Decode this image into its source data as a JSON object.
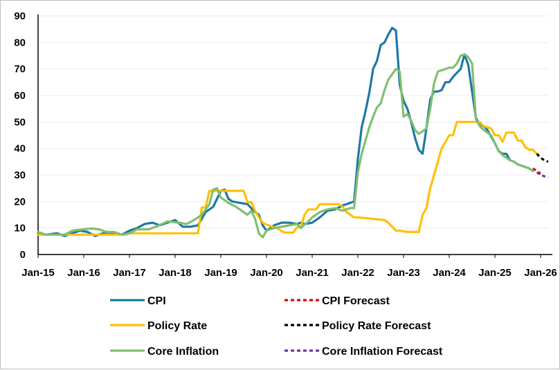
{
  "chart_data": {
    "type": "line",
    "title": "",
    "xlabel": "",
    "ylabel": "",
    "ylim": [
      0,
      90
    ],
    "yticks": [
      "0",
      "10",
      "20",
      "30",
      "40",
      "50",
      "60",
      "70",
      "80",
      "90"
    ],
    "xlim": [
      "2015-01",
      "2026-03"
    ],
    "xticks": [
      "Jan-15",
      "Jan-16",
      "Jan-17",
      "Jan-18",
      "Jan-19",
      "Jan-20",
      "Jan-21",
      "Jan-22",
      "Jan-23",
      "Jan-24",
      "Jan-25",
      "Jan-26"
    ],
    "grid": true,
    "legend_position": "bottom",
    "series": [
      {
        "name": "CPI",
        "color": "#1f77a4",
        "dash": "solid",
        "points": [
          [
            "2015-01",
            8
          ],
          [
            "2015-03",
            7.5
          ],
          [
            "2015-06",
            8
          ],
          [
            "2015-08",
            7
          ],
          [
            "2015-10",
            8
          ],
          [
            "2015-12",
            9
          ],
          [
            "2016-02",
            8.5
          ],
          [
            "2016-04",
            7
          ],
          [
            "2016-06",
            8
          ],
          [
            "2016-09",
            8
          ],
          [
            "2016-11",
            7.5
          ],
          [
            "2017-01",
            9
          ],
          [
            "2017-03",
            10
          ],
          [
            "2017-05",
            11.5
          ],
          [
            "2017-07",
            12
          ],
          [
            "2017-09",
            11
          ],
          [
            "2017-11",
            12
          ],
          [
            "2018-01",
            13
          ],
          [
            "2018-03",
            10.5
          ],
          [
            "2018-05",
            10.5
          ],
          [
            "2018-07",
            11
          ],
          [
            "2018-09",
            16
          ],
          [
            "2018-11",
            18
          ],
          [
            "2018-12",
            21
          ],
          [
            "2019-01",
            24
          ],
          [
            "2019-02",
            24.5
          ],
          [
            "2019-03",
            21
          ],
          [
            "2019-04",
            20
          ],
          [
            "2019-06",
            19.5
          ],
          [
            "2019-08",
            19
          ],
          [
            "2019-10",
            16
          ],
          [
            "2019-11",
            15
          ],
          [
            "2019-12",
            11
          ],
          [
            "2020-01",
            9
          ],
          [
            "2020-03",
            11
          ],
          [
            "2020-05",
            12
          ],
          [
            "2020-07",
            12
          ],
          [
            "2020-09",
            11.5
          ],
          [
            "2020-10",
            12
          ],
          [
            "2020-11",
            11.5
          ],
          [
            "2021-01",
            12
          ],
          [
            "2021-03",
            14
          ],
          [
            "2021-05",
            16.5
          ],
          [
            "2021-07",
            17
          ],
          [
            "2021-09",
            18.5
          ],
          [
            "2021-11",
            19.5
          ],
          [
            "2021-12",
            20
          ],
          [
            "2022-01",
            36
          ],
          [
            "2022-02",
            48
          ],
          [
            "2022-03",
            54
          ],
          [
            "2022-04",
            61
          ],
          [
            "2022-05",
            70
          ],
          [
            "2022-06",
            73
          ],
          [
            "2022-07",
            79
          ],
          [
            "2022-08",
            80
          ],
          [
            "2022-09",
            83
          ],
          [
            "2022-10",
            85.5
          ],
          [
            "2022-11",
            84.5
          ],
          [
            "2022-12",
            64
          ],
          [
            "2023-01",
            58
          ],
          [
            "2023-02",
            55
          ],
          [
            "2023-03",
            50
          ],
          [
            "2023-04",
            44
          ],
          [
            "2023-05",
            39.5
          ],
          [
            "2023-06",
            38
          ],
          [
            "2023-07",
            47.5
          ],
          [
            "2023-08",
            58.5
          ],
          [
            "2023-09",
            61.5
          ],
          [
            "2023-10",
            61.5
          ],
          [
            "2023-11",
            62
          ],
          [
            "2023-12",
            65
          ],
          [
            "2024-01",
            65
          ],
          [
            "2024-02",
            67
          ],
          [
            "2024-03",
            68.5
          ],
          [
            "2024-04",
            70
          ],
          [
            "2024-05",
            75.5
          ],
          [
            "2024-06",
            71.5
          ],
          [
            "2024-07",
            61.5
          ],
          [
            "2024-08",
            51.5
          ],
          [
            "2024-09",
            49
          ],
          [
            "2024-10",
            48.5
          ],
          [
            "2024-11",
            47
          ],
          [
            "2024-12",
            44.5
          ],
          [
            "2025-01",
            42
          ],
          [
            "2025-02",
            39
          ],
          [
            "2025-03",
            38
          ],
          [
            "2025-04",
            38
          ],
          [
            "2025-05",
            35.5
          ],
          [
            "2025-06",
            35
          ],
          [
            "2025-07",
            34
          ],
          [
            "2025-08",
            33.5
          ],
          [
            "2025-09",
            33
          ],
          [
            "2025-10",
            32.5
          ],
          [
            "2025-11",
            31.5
          ]
        ]
      },
      {
        "name": "Policy Rate",
        "color": "#ffc000",
        "dash": "solid",
        "points": [
          [
            "2015-01",
            7.5
          ],
          [
            "2015-06",
            7.5
          ],
          [
            "2015-07",
            7.5
          ],
          [
            "2016-05",
            7.5
          ],
          [
            "2016-06",
            7.5
          ],
          [
            "2016-12",
            7.5
          ],
          [
            "2017-01",
            8
          ],
          [
            "2018-05",
            8
          ],
          [
            "2018-06",
            8
          ],
          [
            "2018-07",
            8
          ],
          [
            "2018-08",
            17.75
          ],
          [
            "2018-09",
            17.75
          ],
          [
            "2018-10",
            24
          ],
          [
            "2019-07",
            24
          ],
          [
            "2019-08",
            19.75
          ],
          [
            "2019-09",
            19.75
          ],
          [
            "2019-10",
            16.5
          ],
          [
            "2019-11",
            14
          ],
          [
            "2019-12",
            12
          ],
          [
            "2020-01",
            11.25
          ],
          [
            "2020-02",
            10.75
          ],
          [
            "2020-04",
            9.75
          ],
          [
            "2020-05",
            8.75
          ],
          [
            "2020-06",
            8.25
          ],
          [
            "2020-08",
            8.25
          ],
          [
            "2020-09",
            10.25
          ],
          [
            "2020-10",
            10.25
          ],
          [
            "2020-11",
            15
          ],
          [
            "2020-12",
            17
          ],
          [
            "2021-02",
            17
          ],
          [
            "2021-03",
            19
          ],
          [
            "2021-08",
            19
          ],
          [
            "2021-09",
            18
          ],
          [
            "2021-10",
            16
          ],
          [
            "2021-11",
            15
          ],
          [
            "2021-12",
            14
          ],
          [
            "2022-01",
            14
          ],
          [
            "2022-08",
            13
          ],
          [
            "2022-09",
            12
          ],
          [
            "2022-10",
            10.5
          ],
          [
            "2022-11",
            9
          ],
          [
            "2022-12",
            9
          ],
          [
            "2023-02",
            8.5
          ],
          [
            "2023-05",
            8.5
          ],
          [
            "2023-06",
            15
          ],
          [
            "2023-07",
            17.5
          ],
          [
            "2023-08",
            25
          ],
          [
            "2023-09",
            30
          ],
          [
            "2023-10",
            35
          ],
          [
            "2023-11",
            40
          ],
          [
            "2023-12",
            42.5
          ],
          [
            "2024-01",
            45
          ],
          [
            "2024-02",
            45
          ],
          [
            "2024-03",
            50
          ],
          [
            "2024-08",
            50
          ],
          [
            "2024-09",
            50
          ],
          [
            "2024-10",
            48.5
          ],
          [
            "2024-12",
            47.5
          ],
          [
            "2025-01",
            45
          ],
          [
            "2025-02",
            45
          ],
          [
            "2025-03",
            42.5
          ],
          [
            "2025-04",
            46
          ],
          [
            "2025-06",
            46
          ],
          [
            "2025-07",
            43
          ],
          [
            "2025-08",
            43
          ],
          [
            "2025-09",
            40.5
          ],
          [
            "2025-10",
            39.5
          ],
          [
            "2025-11",
            39.5
          ],
          [
            "2025-12",
            38
          ]
        ]
      },
      {
        "name": "Core Inflation",
        "color": "#7fbf6f",
        "dash": "solid",
        "points": [
          [
            "2015-01",
            8.5
          ],
          [
            "2015-03",
            7.5
          ],
          [
            "2015-05",
            7.5
          ],
          [
            "2015-08",
            7.5
          ],
          [
            "2015-10",
            9
          ],
          [
            "2016-01",
            9.5
          ],
          [
            "2016-03",
            9.8
          ],
          [
            "2016-05",
            9.5
          ],
          [
            "2016-07",
            8.5
          ],
          [
            "2016-09",
            8.5
          ],
          [
            "2016-11",
            7.5
          ],
          [
            "2017-01",
            8
          ],
          [
            "2017-03",
            9.5
          ],
          [
            "2017-06",
            9.5
          ],
          [
            "2017-08",
            10.5
          ],
          [
            "2017-11",
            12.5
          ],
          [
            "2018-02",
            12
          ],
          [
            "2018-04",
            11.5
          ],
          [
            "2018-06",
            13
          ],
          [
            "2018-08",
            15
          ],
          [
            "2018-10",
            19
          ],
          [
            "2018-11",
            24.5
          ],
          [
            "2018-12",
            25
          ],
          [
            "2019-01",
            21.5
          ],
          [
            "2019-03",
            19.5
          ],
          [
            "2019-05",
            18
          ],
          [
            "2019-07",
            16
          ],
          [
            "2019-08",
            15
          ],
          [
            "2019-09",
            16.5
          ],
          [
            "2019-10",
            13.5
          ],
          [
            "2019-11",
            8
          ],
          [
            "2019-12",
            6.5
          ],
          [
            "2020-01",
            9
          ],
          [
            "2020-03",
            10
          ],
          [
            "2020-05",
            10.5
          ],
          [
            "2020-07",
            11
          ],
          [
            "2020-09",
            11.5
          ],
          [
            "2020-10",
            10
          ],
          [
            "2020-12",
            12.5
          ],
          [
            "2021-01",
            14
          ],
          [
            "2021-03",
            16
          ],
          [
            "2021-05",
            17
          ],
          [
            "2021-07",
            17.5
          ],
          [
            "2021-09",
            16.5
          ],
          [
            "2021-11",
            17.5
          ],
          [
            "2021-12",
            17.5
          ],
          [
            "2022-01",
            31
          ],
          [
            "2022-02",
            38
          ],
          [
            "2022-03",
            43
          ],
          [
            "2022-04",
            48
          ],
          [
            "2022-05",
            52
          ],
          [
            "2022-06",
            55.5
          ],
          [
            "2022-07",
            57
          ],
          [
            "2022-08",
            62
          ],
          [
            "2022-09",
            66
          ],
          [
            "2022-10",
            68
          ],
          [
            "2022-11",
            70
          ],
          [
            "2022-12",
            69
          ],
          [
            "2023-01",
            52
          ],
          [
            "2023-02",
            53
          ],
          [
            "2023-03",
            50.5
          ],
          [
            "2023-04",
            47
          ],
          [
            "2023-05",
            45.5
          ],
          [
            "2023-06",
            46.5
          ],
          [
            "2023-07",
            47.5
          ],
          [
            "2023-08",
            55
          ],
          [
            "2023-09",
            64.5
          ],
          [
            "2023-10",
            69
          ],
          [
            "2023-11",
            69.5
          ],
          [
            "2023-12",
            70
          ],
          [
            "2024-01",
            70.5
          ],
          [
            "2024-02",
            70.5
          ],
          [
            "2024-03",
            72
          ],
          [
            "2024-04",
            75
          ],
          [
            "2024-05",
            75.5
          ],
          [
            "2024-06",
            74.5
          ],
          [
            "2024-07",
            72
          ],
          [
            "2024-08",
            51
          ],
          [
            "2024-09",
            48.5
          ],
          [
            "2024-10",
            47
          ],
          [
            "2024-11",
            46
          ],
          [
            "2024-12",
            45
          ],
          [
            "2025-01",
            42
          ],
          [
            "2025-02",
            39
          ],
          [
            "2025-03",
            37.5
          ],
          [
            "2025-04",
            36.5
          ],
          [
            "2025-05",
            35.5
          ],
          [
            "2025-06",
            35
          ],
          [
            "2025-07",
            34
          ],
          [
            "2025-08",
            33.5
          ],
          [
            "2025-09",
            33
          ],
          [
            "2025-10",
            32.5
          ],
          [
            "2025-11",
            31.5
          ]
        ]
      },
      {
        "name": "CPI Forecast",
        "color": "#e00000",
        "dash": "dashed",
        "points": [
          [
            "2025-11",
            32.5
          ],
          [
            "2025-12",
            31.5
          ],
          [
            "2026-01",
            30.5
          ]
        ]
      },
      {
        "name": "Policy Rate Forecast",
        "color": "#000000",
        "dash": "dashed",
        "points": [
          [
            "2025-12",
            38
          ],
          [
            "2026-01",
            36.5
          ],
          [
            "2026-02",
            35.5
          ],
          [
            "2026-03",
            35
          ]
        ]
      },
      {
        "name": "Core Inflation Forecast",
        "color": "#7030a0",
        "dash": "dashed",
        "points": [
          [
            "2025-12",
            31
          ],
          [
            "2026-01",
            30
          ],
          [
            "2026-02",
            29.5
          ],
          [
            "2026-03",
            29
          ]
        ]
      }
    ]
  }
}
